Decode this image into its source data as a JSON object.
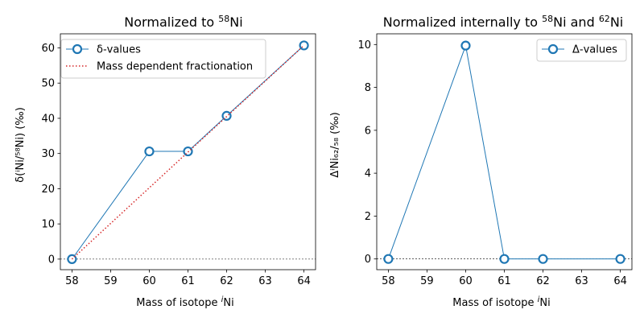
{
  "figure": {
    "background": "#ffffff"
  },
  "chart_data": [
    {
      "type": "line",
      "title_text": "Normalized to ",
      "title_sup": "58",
      "title_after": "Ni",
      "xlabel_text": "Mass of isotope ",
      "xlabel_italic": "i",
      "xlabel_after": "Ni",
      "ylabel_text": "δ(ⁱNi/⁵⁸Ni)   (‰)",
      "xlim": [
        57.7,
        64.3
      ],
      "ylim": [
        -3,
        64
      ],
      "xticks": [
        58,
        59,
        60,
        61,
        62,
        63,
        64
      ],
      "yticks": [
        0,
        10,
        20,
        30,
        40,
        50,
        60
      ],
      "zero_line": true,
      "legend_position": "top-left",
      "series": [
        {
          "name": "δ-values",
          "style": "line-marker",
          "color": "#1f77b4",
          "x": [
            58,
            60,
            61,
            62,
            64
          ],
          "y": [
            0,
            30.6,
            30.6,
            40.7,
            60.7
          ]
        },
        {
          "name": "Mass dependent fractionation",
          "style": "dotted",
          "color": "#d62728",
          "x": [
            58,
            61,
            62,
            64
          ],
          "y": [
            0,
            30.4,
            40.5,
            60.7
          ]
        }
      ]
    },
    {
      "type": "line",
      "title_text": "Normalized internally to ",
      "title_sup": "58",
      "title_mid": "Ni and ",
      "title_sup2": "62",
      "title_after": "Ni",
      "xlabel_text": "Mass of isotope ",
      "xlabel_italic": "i",
      "xlabel_after": "Ni",
      "ylabel_text": "ΔⁱNi₆₂/₅₈   (‰)",
      "xlim": [
        57.7,
        64.3
      ],
      "ylim": [
        -0.5,
        10.5
      ],
      "xticks": [
        58,
        59,
        60,
        61,
        62,
        63,
        64
      ],
      "yticks": [
        0,
        2,
        4,
        6,
        8,
        10
      ],
      "zero_line": true,
      "legend_position": "top-right",
      "series": [
        {
          "name": "Δ-values",
          "style": "line-marker",
          "color": "#1f77b4",
          "x": [
            58,
            60,
            61,
            62,
            64
          ],
          "y": [
            0,
            9.95,
            0,
            0,
            0
          ]
        }
      ]
    }
  ]
}
